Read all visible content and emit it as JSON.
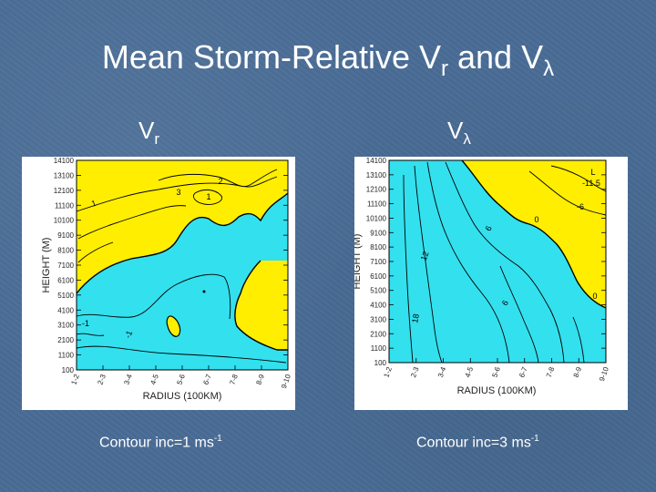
{
  "slide": {
    "title_main": "Mean Storm-Relative V",
    "title_sub1": "r",
    "title_mid": " and V",
    "title_sub2": "λ"
  },
  "colors": {
    "background": "#4a6d96",
    "positive_fill": "#ffee00",
    "negative_fill": "#33e0ee",
    "contour_line": "#000000"
  },
  "chart_data": [
    {
      "type": "heatmap",
      "panel_label_main": "V",
      "panel_label_sub": "r",
      "caption_main": "Contour inc=1 ms",
      "caption_sup": "-1",
      "xlabel": "RADIUS (100KM)",
      "ylabel": "HEIGHT (M)",
      "x_ticks": [
        "1-2",
        "2-3",
        "3-4",
        "4-5",
        "5-6",
        "6-7",
        "7-8",
        "8-9",
        "9-10"
      ],
      "y_ticks": [
        100,
        1100,
        2100,
        3100,
        4100,
        5100,
        6100,
        7100,
        8100,
        9100,
        10100,
        11100,
        12100,
        13100,
        14100
      ],
      "ylim": [
        100,
        14100
      ],
      "contour_labels": [
        "3",
        "2",
        "1",
        "1",
        "-1",
        "-1"
      ]
    },
    {
      "type": "heatmap",
      "panel_label_main": "V",
      "panel_label_sub": "λ",
      "caption_main": "Contour inc=3 ms",
      "caption_sup": "-1",
      "xlabel": "RADIUS (100KM)",
      "ylabel": "HEIGHT (M)",
      "x_ticks": [
        "1-2",
        "2-3",
        "3-4",
        "4-5",
        "5-6",
        "6-7",
        "7-8",
        "8-9",
        "9-10"
      ],
      "y_ticks": [
        100,
        1100,
        2100,
        3100,
        4100,
        5100,
        6100,
        7100,
        8100,
        9100,
        10100,
        11100,
        12100,
        13100,
        14100
      ],
      "ylim": [
        100,
        14100
      ],
      "contour_labels": [
        "0",
        "-6",
        "6",
        "12",
        "6",
        "18",
        "L",
        "-11.5",
        "0"
      ]
    }
  ]
}
